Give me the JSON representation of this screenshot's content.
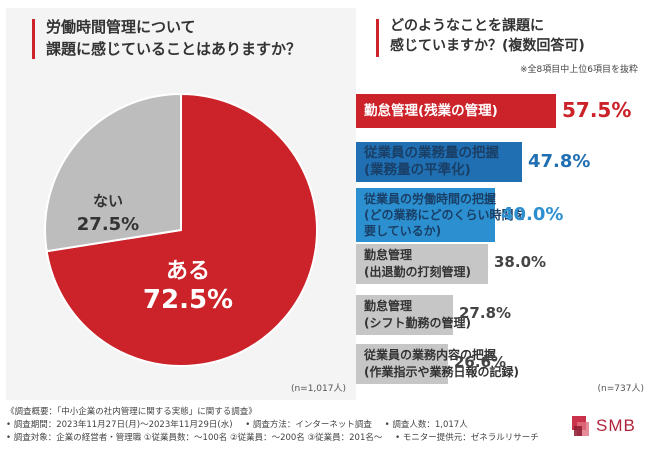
{
  "left": {
    "question_lines": [
      "労働時間管理について",
      "課題に感じていることはありますか？"
    ],
    "n_label": "(n=1,017人)"
  },
  "right": {
    "question_lines": [
      "どのようなことを課題に",
      "感じていますか？(複数回答可)"
    ],
    "note": "※全8項目中上位6項目を抜粋",
    "n_label": "(n=737人)"
  },
  "chart_data": [
    {
      "type": "pie",
      "title": "労働時間管理について課題に感じていることはありますか？",
      "categories": [
        "ある",
        "ない"
      ],
      "values": [
        72.5,
        27.5
      ],
      "value_labels": [
        "72.5%",
        "27.5%"
      ],
      "colors": [
        "#cc2229",
        "#bdbdbd"
      ],
      "n": "(n=1,017人)"
    },
    {
      "type": "bar",
      "orientation": "horizontal",
      "title": "どのようなことを課題に感じていますか？(複数回答可)",
      "categories": [
        [
          "勤怠管理(残業の管理)"
        ],
        [
          "従業員の業務量の把握",
          "(業務量の平準化)"
        ],
        [
          "従業員の労働時間の把握",
          "(どの業務にどのくらい時間を",
          "要しているか)"
        ],
        [
          "勤怠管理",
          "(出退勤の打刻管理)"
        ],
        [
          "勤怠管理",
          "(シフト勤務の管理)"
        ],
        [
          "従業員の業務内容の把握",
          "(作業指示や業務日報の記録)"
        ]
      ],
      "values": [
        57.5,
        47.8,
        40.0,
        38.0,
        27.8,
        26.6
      ],
      "value_labels": [
        "57.5%",
        "47.8%",
        "40.0%",
        "38.0%",
        "27.8%",
        "26.6%"
      ],
      "colors": [
        "#cc2229",
        "#1f6fb2",
        "#2b8fd0",
        "#c6c6c6",
        "#c6c6c6",
        "#c6c6c6"
      ],
      "value_colors": [
        "#cc2229",
        "#1f6fb2",
        "#2b8fd0",
        "#444444",
        "#444444",
        "#444444"
      ],
      "label_colors": [
        "#ffffff",
        "#1a3f66",
        "#1a3f66",
        "#333333",
        "#333333",
        "#333333"
      ],
      "n": "(n=737人)"
    }
  ],
  "footer": {
    "title": "《調査概要：「中小企業の社内管理に関する実態」に関する調査》",
    "items_row1": [
      "• 調査期間：2023年11月27日(月)～2023年11月29日(水)",
      "• 調査方法：インターネット調査",
      "• 調査人数：1,017人"
    ],
    "items_row2": [
      "• 調査対象：企業の経営者・管理職 ①従業員数：～100名 ②従業員：～200名 ③従業員：201名～",
      "• モニター提供元：ゼネラルリサーチ"
    ]
  },
  "logo": {
    "text": "SMB",
    "color": "#b0233a"
  }
}
